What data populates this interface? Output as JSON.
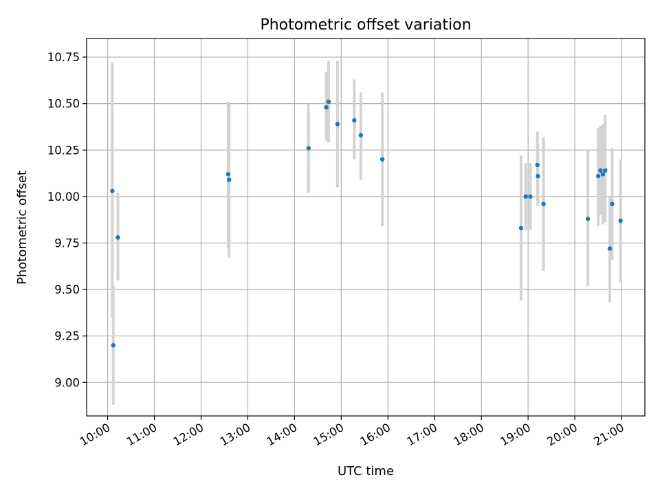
{
  "chart_data": {
    "type": "scatter",
    "title": "Photometric offset variation",
    "xlabel": "UTC time",
    "ylabel": "Photometric offset",
    "x_unit": "hours UTC",
    "xlim": [
      9.55,
      21.5
    ],
    "ylim": [
      8.82,
      10.85
    ],
    "x_ticks": [
      {
        "value": 10,
        "label": "10:00"
      },
      {
        "value": 11,
        "label": "11:00"
      },
      {
        "value": 12,
        "label": "12:00"
      },
      {
        "value": 13,
        "label": "13:00"
      },
      {
        "value": 14,
        "label": "14:00"
      },
      {
        "value": 15,
        "label": "15:00"
      },
      {
        "value": 16,
        "label": "16:00"
      },
      {
        "value": 17,
        "label": "17:00"
      },
      {
        "value": 18,
        "label": "18:00"
      },
      {
        "value": 19,
        "label": "19:00"
      },
      {
        "value": 20,
        "label": "20:00"
      },
      {
        "value": 21,
        "label": "21:00"
      }
    ],
    "y_ticks": [
      {
        "value": 9.0,
        "label": "9.00"
      },
      {
        "value": 9.25,
        "label": "9.25"
      },
      {
        "value": 9.5,
        "label": "9.50"
      },
      {
        "value": 9.75,
        "label": "9.75"
      },
      {
        "value": 10.0,
        "label": "10.00"
      },
      {
        "value": 10.25,
        "label": "10.25"
      },
      {
        "value": 10.5,
        "label": "10.50"
      },
      {
        "value": 10.75,
        "label": "10.75"
      }
    ],
    "grid": true,
    "point_color": "#1f77b4",
    "errorbar_color": "#d3d3d3",
    "points": [
      {
        "x": 10.1,
        "y": 10.03,
        "ylow": 9.35,
        "yhigh": 10.72
      },
      {
        "x": 10.12,
        "y": 9.2,
        "ylow": 8.88,
        "yhigh": 9.52
      },
      {
        "x": 10.22,
        "y": 9.78,
        "ylow": 9.55,
        "yhigh": 10.02
      },
      {
        "x": 12.58,
        "y": 10.12,
        "ylow": 9.72,
        "yhigh": 10.51
      },
      {
        "x": 12.6,
        "y": 10.09,
        "ylow": 9.67,
        "yhigh": 10.5
      },
      {
        "x": 14.3,
        "y": 10.26,
        "ylow": 10.02,
        "yhigh": 10.5
      },
      {
        "x": 14.68,
        "y": 10.48,
        "ylow": 10.3,
        "yhigh": 10.67
      },
      {
        "x": 14.73,
        "y": 10.51,
        "ylow": 10.29,
        "yhigh": 10.73
      },
      {
        "x": 14.92,
        "y": 10.39,
        "ylow": 10.05,
        "yhigh": 10.73
      },
      {
        "x": 15.28,
        "y": 10.41,
        "ylow": 10.2,
        "yhigh": 10.63
      },
      {
        "x": 15.42,
        "y": 10.33,
        "ylow": 10.09,
        "yhigh": 10.56
      },
      {
        "x": 15.88,
        "y": 10.2,
        "ylow": 9.84,
        "yhigh": 10.56
      },
      {
        "x": 18.85,
        "y": 9.83,
        "ylow": 9.44,
        "yhigh": 10.22
      },
      {
        "x": 18.95,
        "y": 10.0,
        "ylow": 9.82,
        "yhigh": 10.18
      },
      {
        "x": 19.05,
        "y": 10.0,
        "ylow": 9.82,
        "yhigh": 10.18
      },
      {
        "x": 19.2,
        "y": 10.17,
        "ylow": 9.98,
        "yhigh": 10.35
      },
      {
        "x": 19.21,
        "y": 10.11,
        "ylow": 9.95,
        "yhigh": 10.28
      },
      {
        "x": 19.33,
        "y": 9.96,
        "ylow": 9.6,
        "yhigh": 10.32
      },
      {
        "x": 20.28,
        "y": 9.88,
        "ylow": 9.52,
        "yhigh": 10.25
      },
      {
        "x": 20.5,
        "y": 10.11,
        "ylow": 9.84,
        "yhigh": 10.37
      },
      {
        "x": 20.55,
        "y": 10.14,
        "ylow": 9.9,
        "yhigh": 10.38
      },
      {
        "x": 20.6,
        "y": 10.12,
        "ylow": 9.85,
        "yhigh": 10.39
      },
      {
        "x": 20.65,
        "y": 10.14,
        "ylow": 9.86,
        "yhigh": 10.44
      },
      {
        "x": 20.75,
        "y": 9.72,
        "ylow": 9.43,
        "yhigh": 10.0
      },
      {
        "x": 20.8,
        "y": 9.96,
        "ylow": 9.66,
        "yhigh": 10.26
      },
      {
        "x": 20.98,
        "y": 9.87,
        "ylow": 9.54,
        "yhigh": 10.2
      }
    ]
  }
}
